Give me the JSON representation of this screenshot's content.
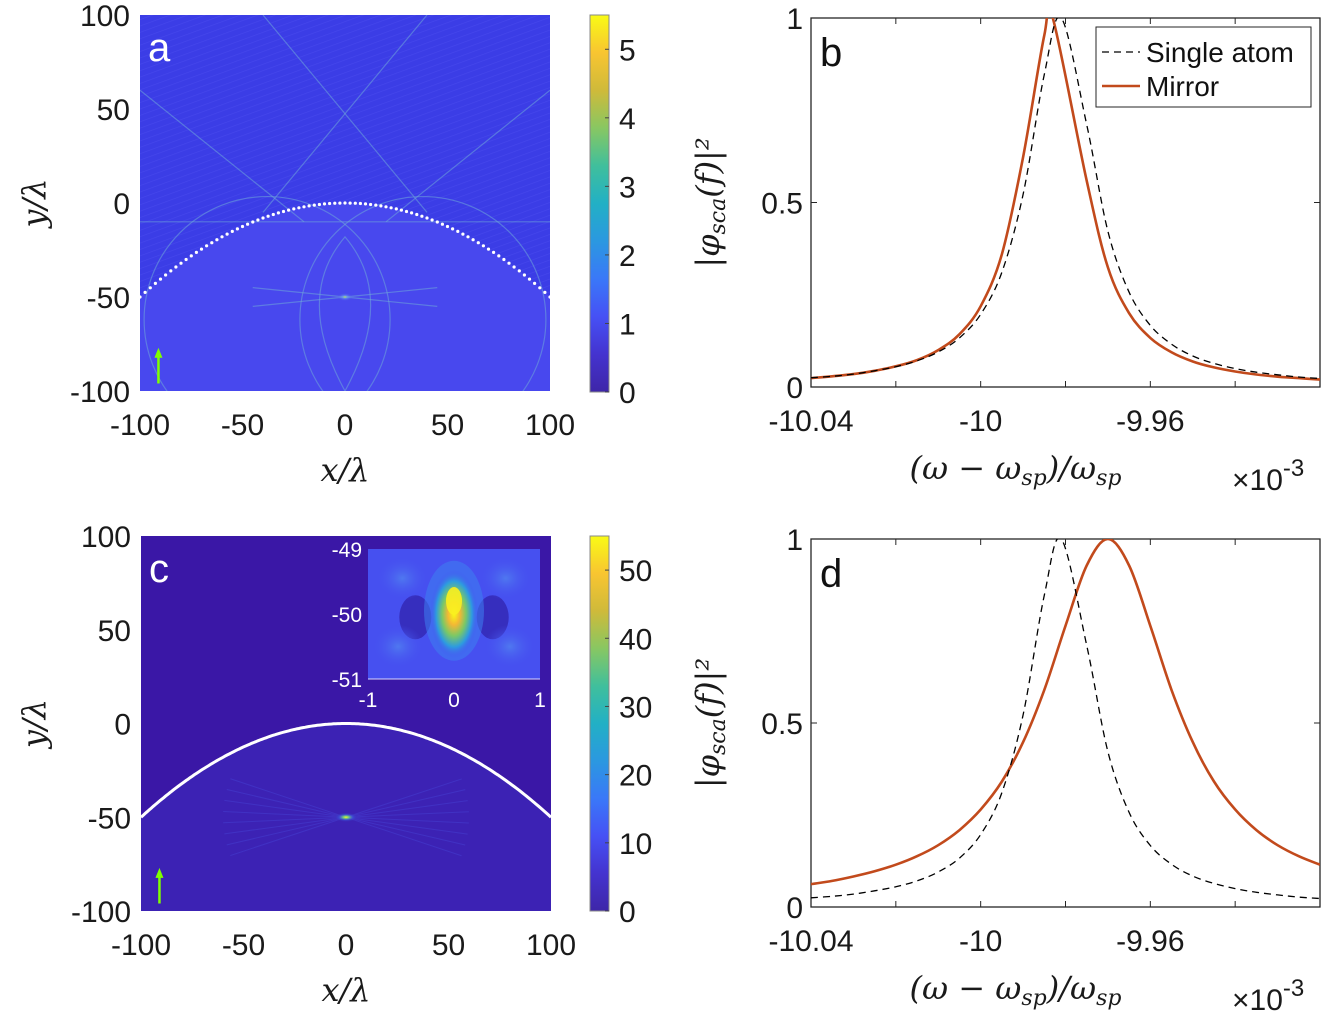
{
  "figure": {
    "panels": [
      "a",
      "b",
      "c",
      "d"
    ]
  },
  "chart_data": [
    {
      "panel": "a",
      "type": "heatmap",
      "title": "",
      "panel_label": "a",
      "xlabel": "x/λ",
      "ylabel": "y/λ",
      "xlim": [
        -100,
        100
      ],
      "ylim": [
        -100,
        100
      ],
      "xticks": [
        -100,
        -50,
        0,
        50,
        100
      ],
      "yticks": [
        -100,
        -50,
        0,
        50,
        100
      ],
      "colorbar": {
        "range": [
          0,
          5.5
        ],
        "ticks": [
          0,
          1,
          2,
          3,
          4,
          5
        ],
        "colormap": "parula"
      },
      "field": {
        "above_mirror_level": 0.55,
        "below_mirror_level": 0.95,
        "focus_peak": 5.5
      },
      "mirror": {
        "shape": "parabola",
        "equation": "y = -x^2/200",
        "style": "dotted",
        "color": "#ffffff"
      },
      "focus": {
        "x": 0,
        "y": -50
      },
      "incident_arrow": {
        "x": -91,
        "y_from": -96,
        "y_to": -77,
        "color": "#7fff00",
        "direction": "up"
      }
    },
    {
      "panel": "b",
      "type": "line",
      "title": "",
      "panel_label": "b",
      "xlabel": "(ω − ω_sp)/ω_sp",
      "x_multiplier": "×10",
      "x_multiplier_exp": "-3",
      "ylabel": "|φ_sca(f)|²",
      "xlim": [
        -10.04,
        -9.92
      ],
      "ylim": [
        0,
        1
      ],
      "xticks": [
        -10.04,
        -10.02,
        -10.0,
        -9.98,
        -9.96,
        -9.94
      ],
      "xticklabels": [
        "-10.04",
        "",
        "-10",
        "",
        "-9.96",
        ""
      ],
      "yticks": [
        0,
        0.5,
        1
      ],
      "yticklabels": [
        "0",
        "0.5",
        "1"
      ],
      "legend": {
        "position": "top-right",
        "entries": [
          "Single atom",
          "Mirror"
        ]
      },
      "series": [
        {
          "name": "Single atom",
          "style": "dashed",
          "color": "#000000",
          "x": [
            -10.04,
            -10.035,
            -10.03,
            -10.025,
            -10.02,
            -10.015,
            -10.01,
            -10.005,
            -10.0,
            -9.995,
            -9.99,
            -9.985,
            -9.981,
            -9.975,
            -9.97,
            -9.965,
            -9.96,
            -9.955,
            -9.95,
            -9.945,
            -9.94,
            -9.935,
            -9.93,
            -9.925,
            -9.92
          ],
          "y": [
            0.025,
            0.029,
            0.035,
            0.044,
            0.055,
            0.071,
            0.095,
            0.133,
            0.197,
            0.311,
            0.522,
            0.847,
            1.0,
            0.711,
            0.422,
            0.257,
            0.167,
            0.116,
            0.084,
            0.064,
            0.05,
            0.04,
            0.033,
            0.027,
            0.023
          ]
        },
        {
          "name": "Mirror",
          "style": "solid",
          "color": "#c24a1c",
          "x": [
            -10.04,
            -10.035,
            -10.03,
            -10.025,
            -10.02,
            -10.015,
            -10.01,
            -10.005,
            -10.0,
            -9.995,
            -9.99,
            -9.985,
            -9.983,
            -9.975,
            -9.97,
            -9.965,
            -9.96,
            -9.955,
            -9.95,
            -9.945,
            -9.94,
            -9.935,
            -9.93,
            -9.925,
            -9.92
          ],
          "y": [
            0.024,
            0.029,
            0.035,
            0.044,
            0.056,
            0.073,
            0.1,
            0.143,
            0.219,
            0.36,
            0.623,
            0.953,
            1.0,
            0.559,
            0.324,
            0.2,
            0.133,
            0.094,
            0.069,
            0.053,
            0.042,
            0.034,
            0.028,
            0.024,
            0.02
          ]
        }
      ]
    },
    {
      "panel": "c",
      "type": "heatmap",
      "title": "",
      "panel_label": "c",
      "xlabel": "x/λ",
      "ylabel": "y/λ",
      "xlim": [
        -100,
        100
      ],
      "ylim": [
        -100,
        100
      ],
      "xticks": [
        -100,
        -50,
        0,
        50,
        100
      ],
      "yticks": [
        -100,
        -50,
        0,
        50,
        100
      ],
      "colorbar": {
        "range": [
          0,
          55
        ],
        "ticks": [
          0,
          10,
          20,
          30,
          40,
          50
        ],
        "colormap": "parula"
      },
      "field": {
        "above_mirror_level": 0.5,
        "below_mirror_level": 2,
        "focus_peak": 55
      },
      "mirror": {
        "shape": "parabola",
        "equation": "y = -x^2/200",
        "style": "solid",
        "color": "#ffffff"
      },
      "focus": {
        "x": 0,
        "y": -50
      },
      "incident_arrow": {
        "x": -91,
        "y_from": -96,
        "y_to": -77,
        "color": "#7fff00",
        "direction": "up"
      },
      "inset": {
        "xlim": [
          -1,
          1
        ],
        "ylim": [
          -51,
          -49
        ],
        "xticks": [
          -1,
          0,
          1
        ],
        "yticks": [
          -51,
          -50,
          -49
        ],
        "xticklabels": [
          "-1",
          "0",
          "1"
        ],
        "yticklabels": [
          "-51",
          "-50",
          "-49"
        ],
        "peak": {
          "x": 0,
          "y": -49.8,
          "value": 55
        },
        "side_lobes": [
          {
            "x": -0.6,
            "y": -49.45
          },
          {
            "x": 0.6,
            "y": -49.45
          },
          {
            "x": -0.65,
            "y": -50.5
          },
          {
            "x": 0.65,
            "y": -50.5
          }
        ]
      }
    },
    {
      "panel": "d",
      "type": "line",
      "title": "",
      "panel_label": "d",
      "xlabel": "(ω − ω_sp)/ω_sp",
      "x_multiplier": "×10",
      "x_multiplier_exp": "-3",
      "ylabel": "|φ_sca(f)|²",
      "xlim": [
        -10.04,
        -9.92
      ],
      "ylim": [
        0,
        1
      ],
      "xticks": [
        -10.04,
        -10.02,
        -10.0,
        -9.98,
        -9.96,
        -9.94
      ],
      "xticklabels": [
        "-10.04",
        "",
        "-10",
        "",
        "-9.96",
        ""
      ],
      "yticks": [
        0,
        0.5,
        1
      ],
      "yticklabels": [
        "0",
        "0.5",
        "1"
      ],
      "legend": null,
      "series": [
        {
          "name": "Single atom",
          "style": "dashed",
          "color": "#000000",
          "x": [
            -10.04,
            -10.035,
            -10.03,
            -10.025,
            -10.02,
            -10.015,
            -10.01,
            -10.005,
            -10.0,
            -9.995,
            -9.99,
            -9.985,
            -9.981,
            -9.975,
            -9.97,
            -9.965,
            -9.96,
            -9.955,
            -9.95,
            -9.945,
            -9.94,
            -9.935,
            -9.93,
            -9.925,
            -9.92
          ],
          "y": [
            0.025,
            0.029,
            0.035,
            0.044,
            0.055,
            0.071,
            0.095,
            0.133,
            0.197,
            0.311,
            0.522,
            0.847,
            1.0,
            0.711,
            0.422,
            0.257,
            0.167,
            0.116,
            0.084,
            0.064,
            0.05,
            0.04,
            0.033,
            0.027,
            0.023
          ]
        },
        {
          "name": "Mirror",
          "style": "solid",
          "color": "#c24a1c",
          "x": [
            -10.04,
            -10.035,
            -10.03,
            -10.025,
            -10.02,
            -10.015,
            -10.01,
            -10.005,
            -10.0,
            -9.995,
            -9.99,
            -9.985,
            -9.98,
            -9.975,
            -9.97,
            -9.965,
            -9.96,
            -9.955,
            -9.95,
            -9.945,
            -9.94,
            -9.935,
            -9.93,
            -9.925,
            -9.92
          ],
          "y": [
            0.062,
            0.071,
            0.083,
            0.097,
            0.115,
            0.138,
            0.168,
            0.209,
            0.265,
            0.341,
            0.448,
            0.59,
            0.764,
            0.928,
            1.0,
            0.928,
            0.764,
            0.59,
            0.448,
            0.341,
            0.265,
            0.209,
            0.168,
            0.138,
            0.115
          ]
        }
      ]
    }
  ]
}
